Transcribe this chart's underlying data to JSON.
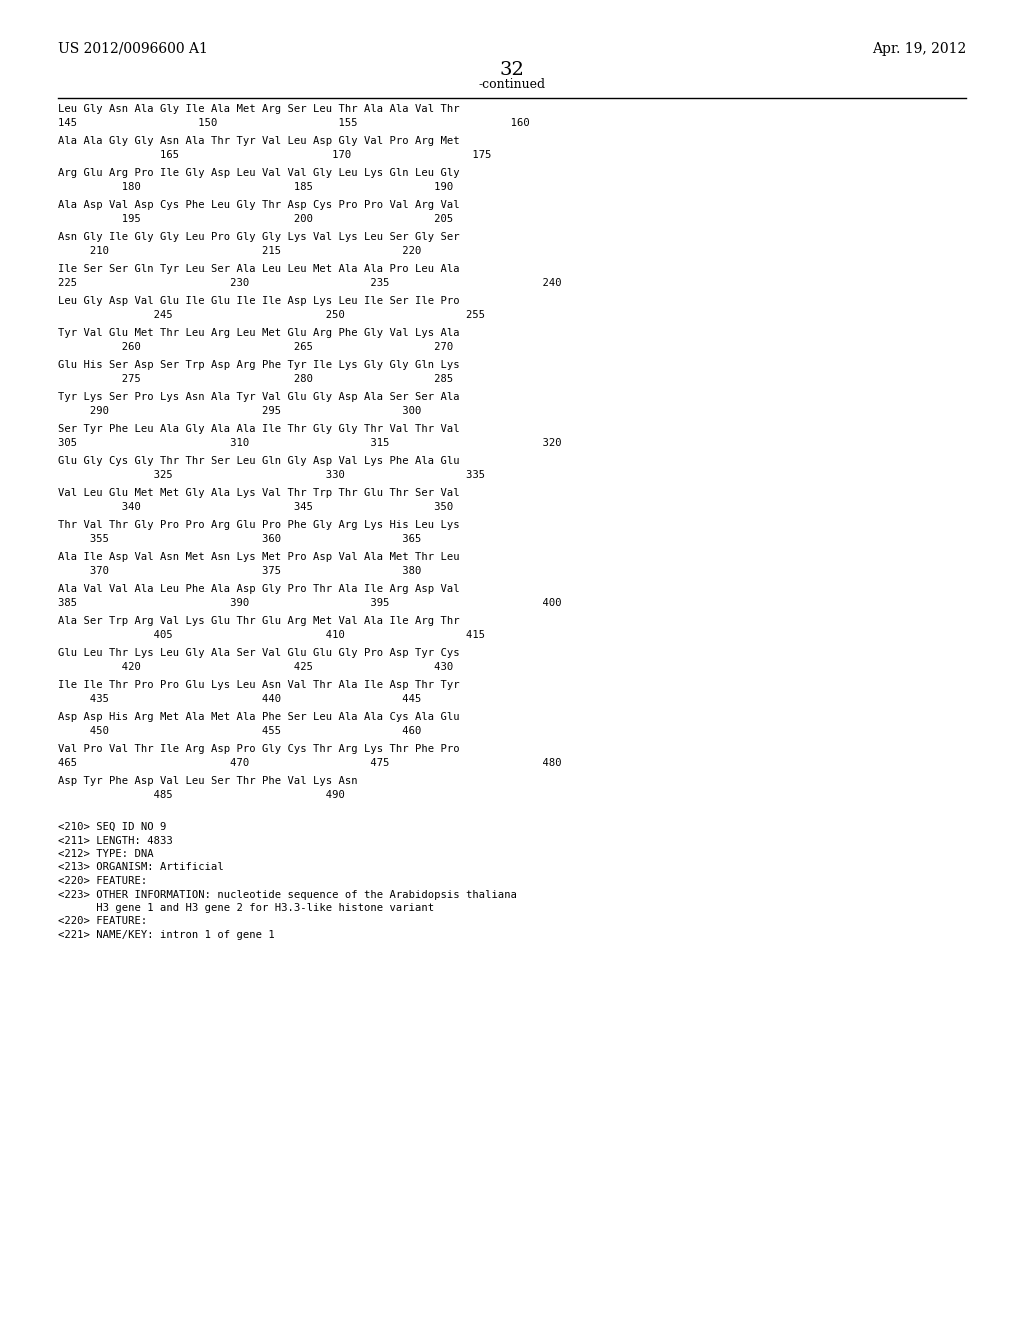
{
  "header_left": "US 2012/0096600 A1",
  "header_right": "Apr. 19, 2012",
  "page_number": "32",
  "continued_label": "-continued",
  "background_color": "#ffffff",
  "text_color": "#000000",
  "seq_blocks": [
    {
      "aa": "Leu Gly Asn Ala Gly Ile Ala Met Arg Ser Leu Thr Ala Ala Val Thr",
      "nums": "145                   150                   155                        160"
    },
    {
      "aa": "Ala Ala Gly Gly Asn Ala Thr Tyr Val Leu Asp Gly Val Pro Arg Met",
      "nums": "                165                        170                   175"
    },
    {
      "aa": "Arg Glu Arg Pro Ile Gly Asp Leu Val Val Gly Leu Lys Gln Leu Gly",
      "nums": "          180                        185                   190"
    },
    {
      "aa": "Ala Asp Val Asp Cys Phe Leu Gly Thr Asp Cys Pro Pro Val Arg Val",
      "nums": "          195                        200                   205"
    },
    {
      "aa": "Asn Gly Ile Gly Gly Leu Pro Gly Gly Lys Val Lys Leu Ser Gly Ser",
      "nums": "     210                        215                   220"
    },
    {
      "aa": "Ile Ser Ser Gln Tyr Leu Ser Ala Leu Leu Met Ala Ala Pro Leu Ala",
      "nums": "225                        230                   235                        240"
    },
    {
      "aa": "Leu Gly Asp Val Glu Ile Glu Ile Ile Asp Lys Leu Ile Ser Ile Pro",
      "nums": "               245                        250                   255"
    },
    {
      "aa": "Tyr Val Glu Met Thr Leu Arg Leu Met Glu Arg Phe Gly Val Lys Ala",
      "nums": "          260                        265                   270"
    },
    {
      "aa": "Glu His Ser Asp Ser Trp Asp Arg Phe Tyr Ile Lys Gly Gly Gln Lys",
      "nums": "          275                        280                   285"
    },
    {
      "aa": "Tyr Lys Ser Pro Lys Asn Ala Tyr Val Glu Gly Asp Ala Ser Ser Ala",
      "nums": "     290                        295                   300"
    },
    {
      "aa": "Ser Tyr Phe Leu Ala Gly Ala Ala Ile Thr Gly Gly Thr Val Thr Val",
      "nums": "305                        310                   315                        320"
    },
    {
      "aa": "Glu Gly Cys Gly Thr Thr Ser Leu Gln Gly Asp Val Lys Phe Ala Glu",
      "nums": "               325                        330                   335"
    },
    {
      "aa": "Val Leu Glu Met Met Gly Ala Lys Val Thr Trp Thr Glu Thr Ser Val",
      "nums": "          340                        345                   350"
    },
    {
      "aa": "Thr Val Thr Gly Pro Pro Arg Glu Pro Phe Gly Arg Lys His Leu Lys",
      "nums": "     355                        360                   365"
    },
    {
      "aa": "Ala Ile Asp Val Asn Met Asn Lys Met Pro Asp Val Ala Met Thr Leu",
      "nums": "     370                        375                   380"
    },
    {
      "aa": "Ala Val Val Ala Leu Phe Ala Asp Gly Pro Thr Ala Ile Arg Asp Val",
      "nums": "385                        390                   395                        400"
    },
    {
      "aa": "Ala Ser Trp Arg Val Lys Glu Thr Glu Arg Met Val Ala Ile Arg Thr",
      "nums": "               405                        410                   415"
    },
    {
      "aa": "Glu Leu Thr Lys Leu Gly Ala Ser Val Glu Glu Gly Pro Asp Tyr Cys",
      "nums": "          420                        425                   430"
    },
    {
      "aa": "Ile Ile Thr Pro Pro Glu Lys Leu Asn Val Thr Ala Ile Asp Thr Tyr",
      "nums": "     435                        440                   445"
    },
    {
      "aa": "Asp Asp His Arg Met Ala Met Ala Phe Ser Leu Ala Ala Cys Ala Glu",
      "nums": "     450                        455                   460"
    },
    {
      "aa": "Val Pro Val Thr Ile Arg Asp Pro Gly Cys Thr Arg Lys Thr Phe Pro",
      "nums": "465                        470                   475                        480"
    },
    {
      "aa": "Asp Tyr Phe Asp Val Leu Ser Thr Phe Val Lys Asn",
      "nums": "               485                        490"
    }
  ],
  "seq_info_lines": [
    "<210> SEQ ID NO 9",
    "<211> LENGTH: 4833",
    "<212> TYPE: DNA",
    "<213> ORGANISM: Artificial",
    "<220> FEATURE:",
    "<223> OTHER INFORMATION: nucleotide sequence of the Arabidopsis thaliana",
    "      H3 gene 1 and H3 gene 2 for H3.3-like histone variant",
    "<220> FEATURE:",
    "<221> NAME/KEY: intron 1 of gene 1"
  ]
}
